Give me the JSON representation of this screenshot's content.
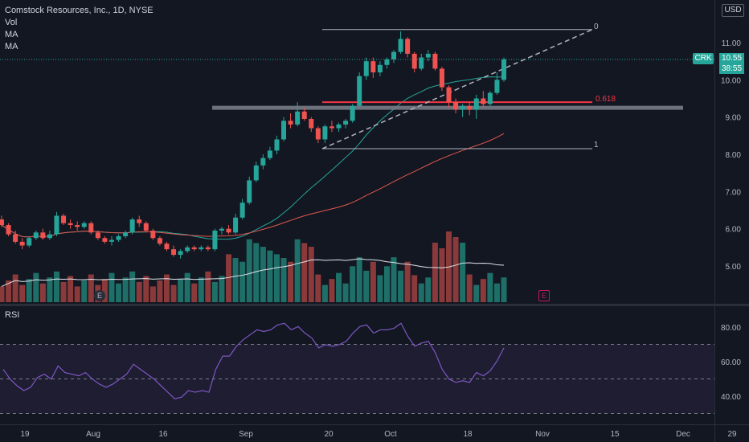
{
  "header": {
    "title": "Comstock Resources, Inc., 1D, NYSE",
    "indicators": [
      "Vol",
      "MA",
      "MA"
    ]
  },
  "price_axis": {
    "currency": "USD",
    "symbol": "CRK",
    "last_price": "10.55",
    "countdown": "38:55",
    "ticks": [
      "11.00",
      "10.00",
      "9.00",
      "8.00",
      "7.00",
      "6.00",
      "5.00"
    ]
  },
  "rsi": {
    "label": "RSI",
    "ticks": [
      "80.00",
      "60.00",
      "40.00"
    ]
  },
  "time_axis": {
    "ticks": [
      "19",
      "Aug",
      "16",
      "Sep",
      "20",
      "Oct",
      "18",
      "Nov",
      "15",
      "Dec",
      "29"
    ]
  },
  "fib_labels": [
    "0",
    "0.618",
    "1"
  ],
  "earnings_badge": "E",
  "colors": {
    "up": "#26a69a",
    "down": "#ef5350",
    "ma_fast": "#26a69a",
    "ma_mid": "#e0574f",
    "ma_slow": "#e0e3eb",
    "rsi": "#7e57c2",
    "fib": "#b2b5be",
    "fib_golden": "#f23645"
  },
  "chart_data": {
    "type": "candlestick",
    "title": "Comstock Resources, Inc., 1D, NYSE",
    "ylim": [
      4.3,
      12.0
    ],
    "candles": [
      [
        6.25,
        6.35,
        6.05,
        6.1
      ],
      [
        6.1,
        6.15,
        5.8,
        5.85
      ],
      [
        5.85,
        5.95,
        5.6,
        5.65
      ],
      [
        5.65,
        5.75,
        5.45,
        5.55
      ],
      [
        5.55,
        5.8,
        5.5,
        5.75
      ],
      [
        5.75,
        5.95,
        5.7,
        5.9
      ],
      [
        5.9,
        6.0,
        5.7,
        5.75
      ],
      [
        5.75,
        5.95,
        5.7,
        5.85
      ],
      [
        5.85,
        6.45,
        5.8,
        6.35
      ],
      [
        6.35,
        6.4,
        6.1,
        6.15
      ],
      [
        6.15,
        6.25,
        6.0,
        6.1
      ],
      [
        6.1,
        6.2,
        5.95,
        6.05
      ],
      [
        6.05,
        6.2,
        6.0,
        6.15
      ],
      [
        6.15,
        6.2,
        5.85,
        5.9
      ],
      [
        5.9,
        5.95,
        5.7,
        5.75
      ],
      [
        5.75,
        5.8,
        5.6,
        5.65
      ],
      [
        5.65,
        5.8,
        5.55,
        5.7
      ],
      [
        5.7,
        5.85,
        5.65,
        5.8
      ],
      [
        5.8,
        5.95,
        5.75,
        5.9
      ],
      [
        5.9,
        6.3,
        5.85,
        6.25
      ],
      [
        6.25,
        6.35,
        6.05,
        6.15
      ],
      [
        6.15,
        6.2,
        5.9,
        5.95
      ],
      [
        5.95,
        6.0,
        5.7,
        5.75
      ],
      [
        5.75,
        5.8,
        5.55,
        5.6
      ],
      [
        5.6,
        5.65,
        5.4,
        5.45
      ],
      [
        5.45,
        5.55,
        5.25,
        5.3
      ],
      [
        5.3,
        5.45,
        5.2,
        5.4
      ],
      [
        5.4,
        5.55,
        5.35,
        5.5
      ],
      [
        5.5,
        5.55,
        5.4,
        5.45
      ],
      [
        5.45,
        5.55,
        5.4,
        5.5
      ],
      [
        5.5,
        5.55,
        5.4,
        5.45
      ],
      [
        5.45,
        6.0,
        5.4,
        5.95
      ],
      [
        5.95,
        6.05,
        5.85,
        6.0
      ],
      [
        6.0,
        6.1,
        5.85,
        5.9
      ],
      [
        5.9,
        6.4,
        5.85,
        6.3
      ],
      [
        6.3,
        6.8,
        6.25,
        6.7
      ],
      [
        6.7,
        7.4,
        6.65,
        7.3
      ],
      [
        7.3,
        7.8,
        7.25,
        7.7
      ],
      [
        7.7,
        8.0,
        7.6,
        7.9
      ],
      [
        7.9,
        8.2,
        7.85,
        8.1
      ],
      [
        8.1,
        8.5,
        8.0,
        8.4
      ],
      [
        8.4,
        9.0,
        8.35,
        8.9
      ],
      [
        8.9,
        9.1,
        8.7,
        8.8
      ],
      [
        8.8,
        9.4,
        8.75,
        9.15
      ],
      [
        9.15,
        9.25,
        8.9,
        8.95
      ],
      [
        8.95,
        9.0,
        8.6,
        8.7
      ],
      [
        8.7,
        8.75,
        8.3,
        8.4
      ],
      [
        8.4,
        8.8,
        8.3,
        8.75
      ],
      [
        8.75,
        8.9,
        8.6,
        8.7
      ],
      [
        8.7,
        8.85,
        8.6,
        8.8
      ],
      [
        8.8,
        8.95,
        8.7,
        8.9
      ],
      [
        8.9,
        9.35,
        8.85,
        9.3
      ],
      [
        9.3,
        10.2,
        9.25,
        10.1
      ],
      [
        10.1,
        10.6,
        10.0,
        10.5
      ],
      [
        10.5,
        10.6,
        10.05,
        10.2
      ],
      [
        10.2,
        10.5,
        10.1,
        10.4
      ],
      [
        10.4,
        10.6,
        10.3,
        10.55
      ],
      [
        10.55,
        10.8,
        10.45,
        10.75
      ],
      [
        10.75,
        11.3,
        10.7,
        11.1
      ],
      [
        11.1,
        11.15,
        10.6,
        10.7
      ],
      [
        10.7,
        10.75,
        10.2,
        10.3
      ],
      [
        10.3,
        10.7,
        10.25,
        10.6
      ],
      [
        10.6,
        10.8,
        10.5,
        10.7
      ],
      [
        10.7,
        10.75,
        10.25,
        10.3
      ],
      [
        10.3,
        10.35,
        9.7,
        9.8
      ],
      [
        9.8,
        9.85,
        9.25,
        9.4
      ],
      [
        9.4,
        9.5,
        9.1,
        9.2
      ],
      [
        9.2,
        9.35,
        9.0,
        9.3
      ],
      [
        9.3,
        9.4,
        9.05,
        9.2
      ],
      [
        9.2,
        9.6,
        8.95,
        9.5
      ],
      [
        9.5,
        9.7,
        9.25,
        9.35
      ],
      [
        9.35,
        9.7,
        9.3,
        9.65
      ],
      [
        9.65,
        10.2,
        9.6,
        10.0
      ],
      [
        10.0,
        10.6,
        9.95,
        10.55
      ]
    ]
  },
  "fib_levels": [
    11.35,
    9.4,
    8.15
  ],
  "support_level": 9.25
}
